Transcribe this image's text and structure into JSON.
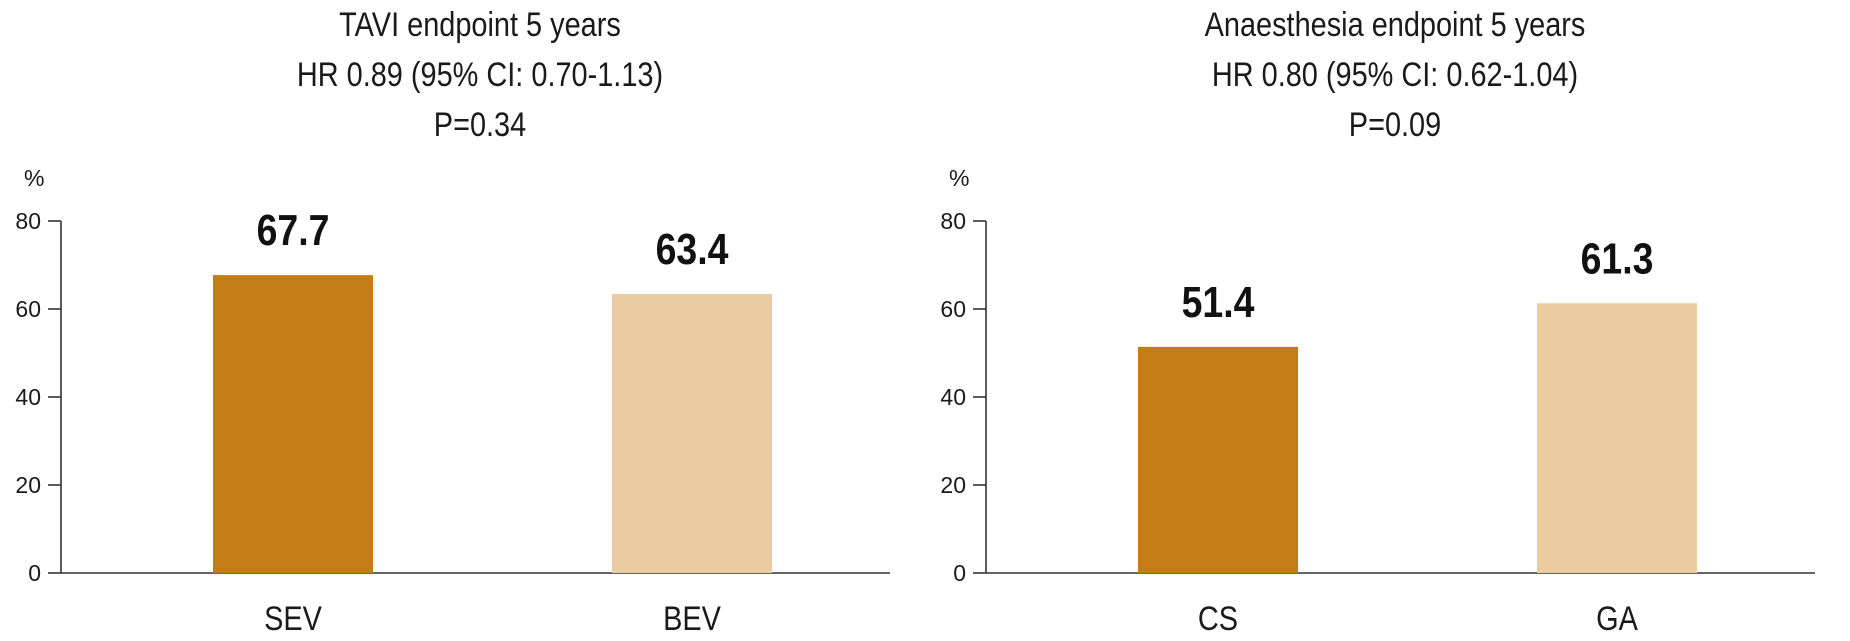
{
  "chart_data": [
    {
      "type": "bar",
      "title_lines": [
        "TAVI endpoint 5 years",
        "HR 0.89 (95% CI: 0.70-1.13)",
        "P=0.34"
      ],
      "ylabel": "%",
      "ylim": [
        0,
        80
      ],
      "yticks": [
        0,
        20,
        40,
        60,
        80
      ],
      "categories": [
        "SEV",
        "BEV"
      ],
      "values": [
        67.7,
        63.4
      ],
      "value_labels": [
        "67.7",
        "63.4"
      ],
      "colors": [
        "#c47c16",
        "#eacca0"
      ],
      "grid": false,
      "legend": "none"
    },
    {
      "type": "bar",
      "title_lines": [
        "Anaesthesia endpoint 5 years",
        "HR 0.80 (95% CI: 0.62-1.04)",
        "P=0.09"
      ],
      "ylabel": "%",
      "ylim": [
        0,
        80
      ],
      "yticks": [
        0,
        20,
        40,
        60,
        80
      ],
      "categories": [
        "CS",
        "GA"
      ],
      "values": [
        51.4,
        61.3
      ],
      "value_labels": [
        "51.4",
        "61.3"
      ],
      "colors": [
        "#c47c16",
        "#eacca0"
      ],
      "grid": false,
      "legend": "none"
    }
  ]
}
